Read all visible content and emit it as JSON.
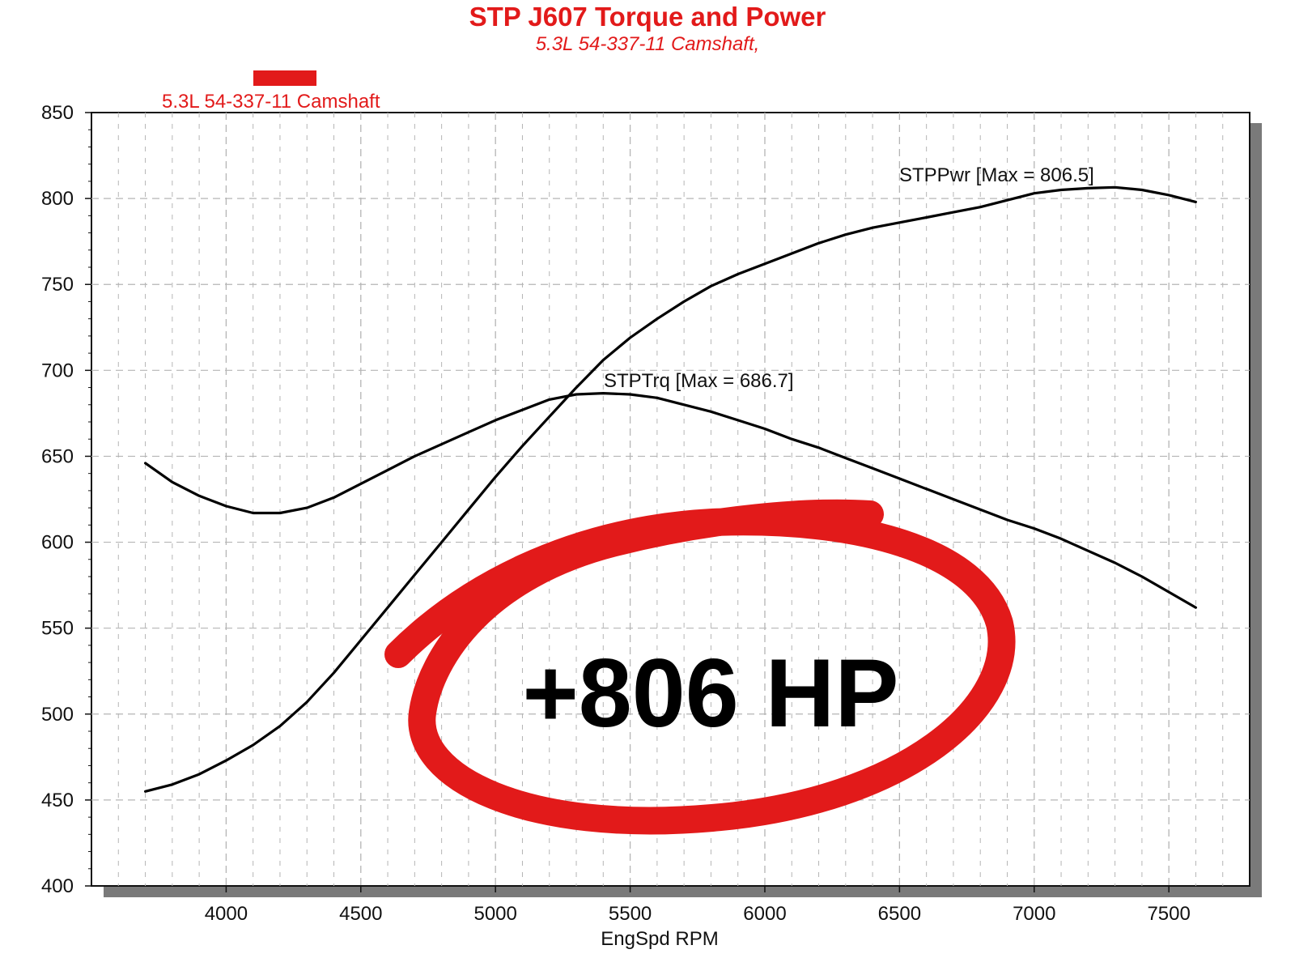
{
  "colors": {
    "accent": "#e21a1a",
    "line": "#000000",
    "grid": "#b5b5b5",
    "shadow": "#7a7a7a"
  },
  "chart_data": {
    "type": "line",
    "title": "STP J607 Torque and Power",
    "subtitle": "5.3L 54-337-11 Camshaft,",
    "xlabel": "EngSpd RPM",
    "ylabel": "",
    "xlim": [
      3500,
      7800
    ],
    "ylim": [
      400,
      850
    ],
    "x_ticks": [
      4000,
      4500,
      5000,
      5500,
      6000,
      6500,
      7000,
      7500
    ],
    "y_ticks": [
      400,
      450,
      500,
      550,
      600,
      650,
      700,
      750,
      800,
      850
    ],
    "grid": true,
    "legend": {
      "placement": "top-left",
      "entries": [
        "5.3L 54-337-11 Camshaft"
      ]
    },
    "series": [
      {
        "name": "STPPwr",
        "annotation": "STPPwr [Max = 806.5]",
        "x": [
          3700,
          3800,
          3900,
          4000,
          4100,
          4200,
          4300,
          4400,
          4500,
          4600,
          4700,
          4800,
          4900,
          5000,
          5100,
          5200,
          5300,
          5400,
          5500,
          5600,
          5700,
          5800,
          5900,
          6000,
          6100,
          6200,
          6300,
          6400,
          6500,
          6600,
          6700,
          6800,
          6900,
          7000,
          7100,
          7200,
          7300,
          7400,
          7500,
          7600
        ],
        "values": [
          455,
          459,
          465,
          473,
          482,
          493,
          507,
          524,
          543,
          562,
          581,
          600,
          619,
          638,
          656,
          673,
          690,
          706,
          719,
          730,
          740,
          749,
          756,
          762,
          768,
          774,
          779,
          783,
          786,
          789,
          792,
          795,
          799,
          803,
          805,
          806,
          806.5,
          805,
          802,
          798
        ]
      },
      {
        "name": "STPTrq",
        "annotation": "STPTrq [Max = 686.7]",
        "x": [
          3700,
          3800,
          3900,
          4000,
          4100,
          4200,
          4300,
          4400,
          4500,
          4600,
          4700,
          4800,
          4900,
          5000,
          5100,
          5200,
          5300,
          5400,
          5500,
          5600,
          5700,
          5800,
          5900,
          6000,
          6100,
          6200,
          6300,
          6400,
          6500,
          6600,
          6700,
          6800,
          6900,
          7000,
          7100,
          7200,
          7300,
          7400,
          7500,
          7600
        ],
        "values": [
          646,
          635,
          627,
          621,
          617,
          617,
          620,
          626,
          634,
          642,
          650,
          657,
          664,
          671,
          677,
          683,
          686,
          686.7,
          686,
          684,
          680,
          676,
          671,
          666,
          660,
          655,
          649,
          643,
          637,
          631,
          625,
          619,
          613,
          608,
          602,
          595,
          588,
          580,
          571,
          562
        ]
      }
    ],
    "annotations": [
      "+806 HP"
    ]
  }
}
